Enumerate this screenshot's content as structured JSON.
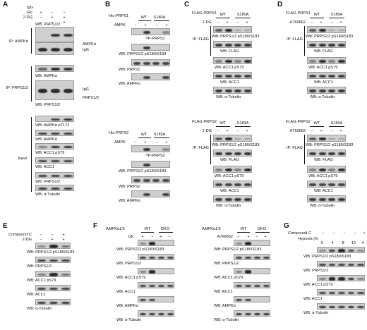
{
  "panels": {
    "A": {
      "letter": "A",
      "header": [
        "IgG",
        "Glc",
        "2-DG"
      ],
      "header_signs": [
        [
          "+",
          "−",
          "−"
        ],
        [
          "−",
          "+",
          "+"
        ],
        [
          "−",
          "−",
          "+"
        ]
      ],
      "ip1": "IP: AMPKα",
      "ip1_blots": [
        "WB: PRPS1/2"
      ],
      "ip1_side": [
        "AMPKα",
        "IgG"
      ],
      "ip2": "IP: PRPS1/2",
      "ip2_blots": [
        "WB: AMPKα",
        "WB: PRPS1/2"
      ],
      "ip2_side": [
        "IgG",
        "PRPS1/2"
      ],
      "input_label": "Input",
      "input_blots": [
        "WB: AMPKα pT172",
        "WB: AMPKα",
        "WB: ACC1 pS79",
        "WB: ACC1",
        "WB: PRPS1/2",
        "WB: α-Tubulin"
      ]
    },
    "B": {
      "letter": "B",
      "top_label": "His-PRPS1",
      "top_cols": [
        "WT",
        "S180A"
      ],
      "top_ampk": "AMPK",
      "top_signs": [
        "−",
        "+",
        "−",
        "+"
      ],
      "top_blots": [
        "³²P-PRPS1",
        "WB: PRPS1/2 pS180/S183",
        "WB: PRPS1",
        "WB: AMPKα"
      ],
      "bot_label": "His-PRPS2",
      "bot_cols": [
        "WT",
        "S183A"
      ],
      "bot_ampk": "AMPK",
      "bot_signs": [
        "−",
        "+",
        "−",
        "+"
      ],
      "bot_blots": [
        "³²P-PRPS2",
        "WB: PRPS1/2 pS180/S183",
        "WB: PRPS2",
        "WB: AMPKα"
      ]
    },
    "C": {
      "letter": "C",
      "top_label": "FLAG-PRPS1",
      "top_cols": [
        "WT",
        "S180A"
      ],
      "top_treat": "2-DG",
      "top_signs": [
        "−",
        "+",
        "−",
        "+"
      ],
      "ip": "IP: FLAG",
      "top_ip_blots": [
        "WB: PRPS1/2 pS180/S183",
        "WB: FLAG"
      ],
      "top_in_blots": [
        "WB: ACC1 pS79",
        "WB: ACC1",
        "WB: α-Tubulin"
      ],
      "bot_label": "FLAG-PRPS2",
      "bot_cols": [
        "WT",
        "S183A"
      ],
      "bot_treat": "2-DG",
      "bot_signs": [
        "−",
        "+",
        "−",
        "+"
      ],
      "bot_ip_blots": [
        "WB: PRPS1/2 pS180/S183",
        "WB: FLAG"
      ],
      "bot_in_blots": [
        "WB: ACC1 pS79",
        "WB: ACC1",
        "WB: α-Tubulin"
      ]
    },
    "D": {
      "letter": "D",
      "top_label": "FLAG-PRPS1",
      "top_cols": [
        "WT",
        "S180A"
      ],
      "top_treat": "A769662",
      "top_signs": [
        "−",
        "+",
        "−",
        "+"
      ],
      "ip": "IP: FLAG",
      "top_ip_blots": [
        "WB: PRPS1/2 pS180/S183",
        "WB: FLAG"
      ],
      "top_in_blots": [
        "WB: ACC1 pS79",
        "WB: ACC1",
        "WB: α-Tubulin"
      ],
      "bot_label": "FLAG-PRPS2",
      "bot_cols": [
        "WT",
        "S183A"
      ],
      "bot_treat": "A769662",
      "bot_signs": [
        "−",
        "+",
        "−",
        "+"
      ],
      "bot_ip_blots": [
        "WB: PRPS1/2 pS180/S183",
        "WB: FLAG"
      ],
      "bot_in_blots": [
        "WB: ACC1 pS79",
        "WB: ACC1",
        "WB: α-Tubulin"
      ]
    },
    "E": {
      "letter": "E",
      "rows": [
        "Compound C",
        "2-DG"
      ],
      "signs": [
        [
          "−",
          "−",
          "+"
        ],
        [
          "−",
          "+",
          "+"
        ]
      ],
      "blots": [
        "WB: PRPS1/2 pS180/S183",
        "WB: PRPS1/2",
        "WB: ACC1 pS79",
        "WB: ACC1",
        "WB: α-Tubulin"
      ]
    },
    "F": {
      "letter": "F",
      "left_label": "AMPKα1/2",
      "left_cols": [
        "WT",
        "DKO"
      ],
      "left_treat": "Glc",
      "left_signs": [
        "+",
        "−",
        "+",
        "−"
      ],
      "right_label": "AMPKα1/2",
      "right_cols": [
        "WT",
        "DKO"
      ],
      "right_treat": "A769662",
      "right_signs": [
        "−",
        "+",
        "−",
        "+"
      ],
      "blots": [
        "WB: PRPS1/2 pS180/S183",
        "WB: PRPS1/2",
        "WB: ACC1 pS79",
        "WB: ACC1",
        "WB: AMPKα",
        "WB: α-Tubulin"
      ]
    },
    "G": {
      "letter": "G",
      "rows": [
        "Compound C",
        "Hypoxia (h)"
      ],
      "compound_signs": [
        "−",
        "−",
        "−",
        "−",
        "+"
      ],
      "hypoxia_vals": [
        "0",
        "4",
        "8",
        "12",
        "4"
      ],
      "blots": [
        "WB: PRPS1/2 pS180/S183",
        "WB: PRPS1/2",
        "WB: ACC1 pS79",
        "WB: ACC1",
        "WB: α-Tubulin"
      ]
    }
  }
}
